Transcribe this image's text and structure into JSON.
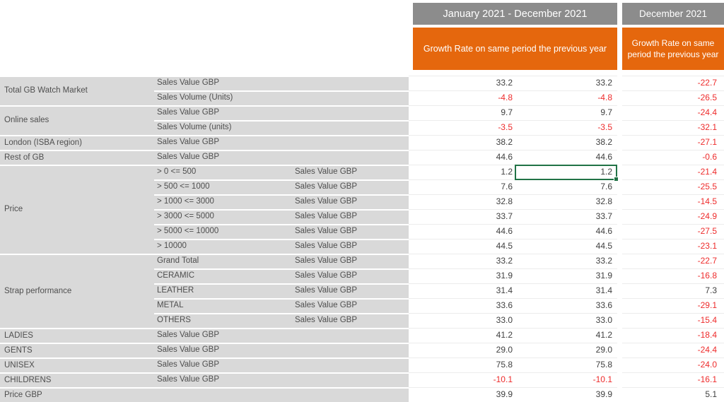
{
  "header": {
    "period_1": "January 2021 - December 2021",
    "period_2": "December 2021",
    "growth_label_1": "Growth Rate on same period the previous year",
    "growth_label_2": "Growth Rate on same period the previous year"
  },
  "colors": {
    "header_gray": "#8c8c8c",
    "header_orange": "#e5670d",
    "label_gray": "#d9d9d9",
    "negative_red": "#ee2b2b",
    "positive_text": "#3f3f3f",
    "selection_green": "#217346"
  },
  "selection": {
    "row": 6,
    "col": "v2"
  },
  "groups": [
    {
      "label": "Total GB Watch Market",
      "start": 0,
      "span": 2
    },
    {
      "label": "Online sales",
      "start": 2,
      "span": 2
    },
    {
      "label": "London (ISBA region)",
      "start": 4,
      "span": 1
    },
    {
      "label": "Rest of GB",
      "start": 5,
      "span": 1
    },
    {
      "label": "Price",
      "start": 6,
      "span": 6
    },
    {
      "label": "Strap performance",
      "start": 12,
      "span": 5
    },
    {
      "label": "LADIES",
      "start": 17,
      "span": 1
    },
    {
      "label": "GENTS",
      "start": 18,
      "span": 1
    },
    {
      "label": "UNISEX",
      "start": 19,
      "span": 1
    },
    {
      "label": "CHILDRENS",
      "start": 20,
      "span": 1
    },
    {
      "label": "Price GBP",
      "start": 21,
      "span": 1
    }
  ],
  "rows": [
    {
      "colB": "Sales Value GBP",
      "colC": "",
      "v1": "33.2",
      "v2": "33.2",
      "v3": "-22.7",
      "groupStart": true
    },
    {
      "colB": "Sales Volume (Units)",
      "colC": "",
      "v1": "-4.8",
      "v2": "-4.8",
      "v3": "-26.5",
      "groupStart": false
    },
    {
      "colB": "Sales Value GBP",
      "colC": "",
      "v1": "9.7",
      "v2": "9.7",
      "v3": "-24.4",
      "groupStart": true
    },
    {
      "colB": "Sales Volume (units)",
      "colC": "",
      "v1": "-3.5",
      "v2": "-3.5",
      "v3": "-32.1",
      "groupStart": false
    },
    {
      "colB": "Sales Value GBP",
      "colC": "",
      "v1": "38.2",
      "v2": "38.2",
      "v3": "-27.1",
      "groupStart": true
    },
    {
      "colB": "Sales Value GBP",
      "colC": "",
      "v1": "44.6",
      "v2": "44.6",
      "v3": "-0.6",
      "groupStart": true
    },
    {
      "colB": "> 0 <= 500",
      "colC": "Sales Value GBP",
      "v1": "1.2",
      "v2": "1.2",
      "v3": "-21.4",
      "groupStart": true
    },
    {
      "colB": "> 500 <= 1000",
      "colC": "Sales Value GBP",
      "v1": "7.6",
      "v2": "7.6",
      "v3": "-25.5",
      "groupStart": false
    },
    {
      "colB": "> 1000 <= 3000",
      "colC": "Sales Value GBP",
      "v1": "32.8",
      "v2": "32.8",
      "v3": "-14.5",
      "groupStart": false
    },
    {
      "colB": "> 3000 <= 5000",
      "colC": "Sales Value GBP",
      "v1": "33.7",
      "v2": "33.7",
      "v3": "-24.9",
      "groupStart": false
    },
    {
      "colB": "> 5000 <= 10000",
      "colC": "Sales Value GBP",
      "v1": "44.6",
      "v2": "44.6",
      "v3": "-27.5",
      "groupStart": false
    },
    {
      "colB": "> 10000",
      "colC": "Sales Value GBP",
      "v1": "44.5",
      "v2": "44.5",
      "v3": "-23.1",
      "groupStart": false
    },
    {
      "colB": "Grand Total",
      "colC": "Sales Value GBP",
      "v1": "33.2",
      "v2": "33.2",
      "v3": "-22.7",
      "groupStart": true
    },
    {
      "colB": "CERAMIC",
      "colC": "Sales Value GBP",
      "v1": "31.9",
      "v2": "31.9",
      "v3": "-16.8",
      "groupStart": false
    },
    {
      "colB": "LEATHER",
      "colC": "Sales Value GBP",
      "v1": "31.4",
      "v2": "31.4",
      "v3": "7.3",
      "groupStart": false
    },
    {
      "colB": "METAL",
      "colC": "Sales Value GBP",
      "v1": "33.6",
      "v2": "33.6",
      "v3": "-29.1",
      "groupStart": false
    },
    {
      "colB": "OTHERS",
      "colC": "Sales Value GBP",
      "v1": "33.0",
      "v2": "33.0",
      "v3": "-15.4",
      "groupStart": false
    },
    {
      "colB": "Sales Value GBP",
      "colC": "",
      "v1": "41.2",
      "v2": "41.2",
      "v3": "-18.4",
      "groupStart": true
    },
    {
      "colB": "Sales Value GBP",
      "colC": "",
      "v1": "29.0",
      "v2": "29.0",
      "v3": "-24.4",
      "groupStart": true
    },
    {
      "colB": "Sales Value GBP",
      "colC": "",
      "v1": "75.8",
      "v2": "75.8",
      "v3": "-24.0",
      "groupStart": true
    },
    {
      "colB": "Sales Value GBP",
      "colC": "",
      "v1": "-10.1",
      "v2": "-10.1",
      "v3": "-16.1",
      "groupStart": true
    },
    {
      "colB": "",
      "colC": "",
      "v1": "39.9",
      "v2": "39.9",
      "v3": "5.1",
      "groupStart": true
    }
  ]
}
